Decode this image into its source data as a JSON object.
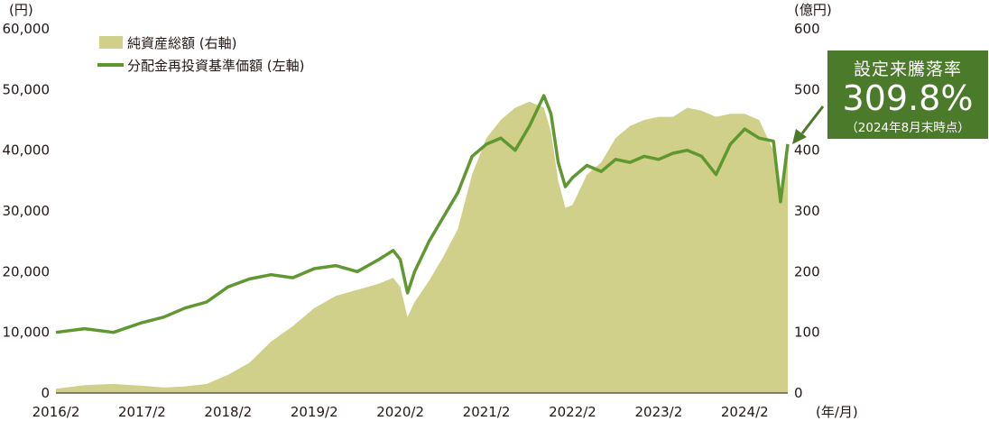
{
  "chart_data": {
    "type": "area+line",
    "left_axis": {
      "unit": "(円)",
      "ticks": [
        "0",
        "10,000",
        "20,000",
        "30,000",
        "40,000",
        "50,000",
        "60,000"
      ],
      "range": [
        0,
        60000
      ]
    },
    "right_axis": {
      "unit": "(億円)",
      "ticks": [
        "0",
        "100",
        "200",
        "300",
        "400",
        "500",
        "600"
      ],
      "range": [
        0,
        600
      ]
    },
    "x_axis": {
      "unit": "(年/月)",
      "ticks": [
        "2016/2",
        "2017/2",
        "2018/2",
        "2019/2",
        "2020/2",
        "2021/2",
        "2022/2",
        "2023/2",
        "2024/2"
      ],
      "range": [
        "2016/2",
        "2024/8"
      ]
    },
    "legend": {
      "placement": "top-left"
    },
    "series": [
      {
        "name": "純資産総額 (右軸)",
        "type": "area",
        "axis": "right",
        "color": "#d0d08a",
        "points": [
          [
            "2016/2",
            7
          ],
          [
            "2016/6",
            13
          ],
          [
            "2016/10",
            15
          ],
          [
            "2017/2",
            12
          ],
          [
            "2017/5",
            9
          ],
          [
            "2017/8",
            11
          ],
          [
            "2017/11",
            15
          ],
          [
            "2018/2",
            30
          ],
          [
            "2018/5",
            50
          ],
          [
            "2018/8",
            85
          ],
          [
            "2018/11",
            110
          ],
          [
            "2019/2",
            140
          ],
          [
            "2019/5",
            160
          ],
          [
            "2019/8",
            170
          ],
          [
            "2019/11",
            180
          ],
          [
            "2020/1",
            190
          ],
          [
            "2020/2",
            175
          ],
          [
            "2020/3",
            125
          ],
          [
            "2020/4",
            150
          ],
          [
            "2020/6",
            185
          ],
          [
            "2020/8",
            225
          ],
          [
            "2020/10",
            270
          ],
          [
            "2020/12",
            360
          ],
          [
            "2021/2",
            420
          ],
          [
            "2021/4",
            450
          ],
          [
            "2021/6",
            470
          ],
          [
            "2021/8",
            480
          ],
          [
            "2021/10",
            470
          ],
          [
            "2021/11",
            430
          ],
          [
            "2021/12",
            350
          ],
          [
            "2022/1",
            305
          ],
          [
            "2022/2",
            310
          ],
          [
            "2022/4",
            360
          ],
          [
            "2022/6",
            380
          ],
          [
            "2022/8",
            420
          ],
          [
            "2022/10",
            440
          ],
          [
            "2022/12",
            450
          ],
          [
            "2023/2",
            455
          ],
          [
            "2023/4",
            455
          ],
          [
            "2023/6",
            470
          ],
          [
            "2023/8",
            465
          ],
          [
            "2023/10",
            455
          ],
          [
            "2023/12",
            460
          ],
          [
            "2024/2",
            460
          ],
          [
            "2024/4",
            450
          ],
          [
            "2024/6",
            400
          ],
          [
            "2024/7",
            320
          ],
          [
            "2024/8",
            400
          ]
        ]
      },
      {
        "name": "分配金再投資基準価額 (左軸)",
        "type": "line",
        "axis": "left",
        "color": "#5f9731",
        "points": [
          [
            "2016/2",
            10000
          ],
          [
            "2016/6",
            10600
          ],
          [
            "2016/10",
            10000
          ],
          [
            "2017/2",
            11600
          ],
          [
            "2017/5",
            12500
          ],
          [
            "2017/8",
            14000
          ],
          [
            "2017/11",
            15000
          ],
          [
            "2018/2",
            17500
          ],
          [
            "2018/5",
            18800
          ],
          [
            "2018/8",
            19500
          ],
          [
            "2018/11",
            19000
          ],
          [
            "2019/2",
            20500
          ],
          [
            "2019/5",
            21000
          ],
          [
            "2019/8",
            20000
          ],
          [
            "2019/11",
            22000
          ],
          [
            "2020/1",
            23500
          ],
          [
            "2020/2",
            22000
          ],
          [
            "2020/3",
            16500
          ],
          [
            "2020/4",
            20000
          ],
          [
            "2020/6",
            25000
          ],
          [
            "2020/8",
            29000
          ],
          [
            "2020/10",
            33000
          ],
          [
            "2020/12",
            39000
          ],
          [
            "2021/2",
            41000
          ],
          [
            "2021/4",
            42000
          ],
          [
            "2021/6",
            40000
          ],
          [
            "2021/8",
            44000
          ],
          [
            "2021/10",
            49000
          ],
          [
            "2021/11",
            46000
          ],
          [
            "2021/12",
            38000
          ],
          [
            "2022/1",
            34000
          ],
          [
            "2022/2",
            35500
          ],
          [
            "2022/4",
            37500
          ],
          [
            "2022/6",
            36500
          ],
          [
            "2022/8",
            38500
          ],
          [
            "2022/10",
            38000
          ],
          [
            "2022/12",
            39000
          ],
          [
            "2023/2",
            38500
          ],
          [
            "2023/4",
            39500
          ],
          [
            "2023/6",
            40000
          ],
          [
            "2023/8",
            39000
          ],
          [
            "2023/10",
            36000
          ],
          [
            "2023/12",
            41000
          ],
          [
            "2024/2",
            43500
          ],
          [
            "2024/4",
            42000
          ],
          [
            "2024/6",
            41500
          ],
          [
            "2024/7",
            31500
          ],
          [
            "2024/8",
            41000
          ]
        ]
      }
    ]
  },
  "callout": {
    "title": "設定来騰落率",
    "value": "309.8%",
    "note": "（2024年8月末時点）"
  }
}
